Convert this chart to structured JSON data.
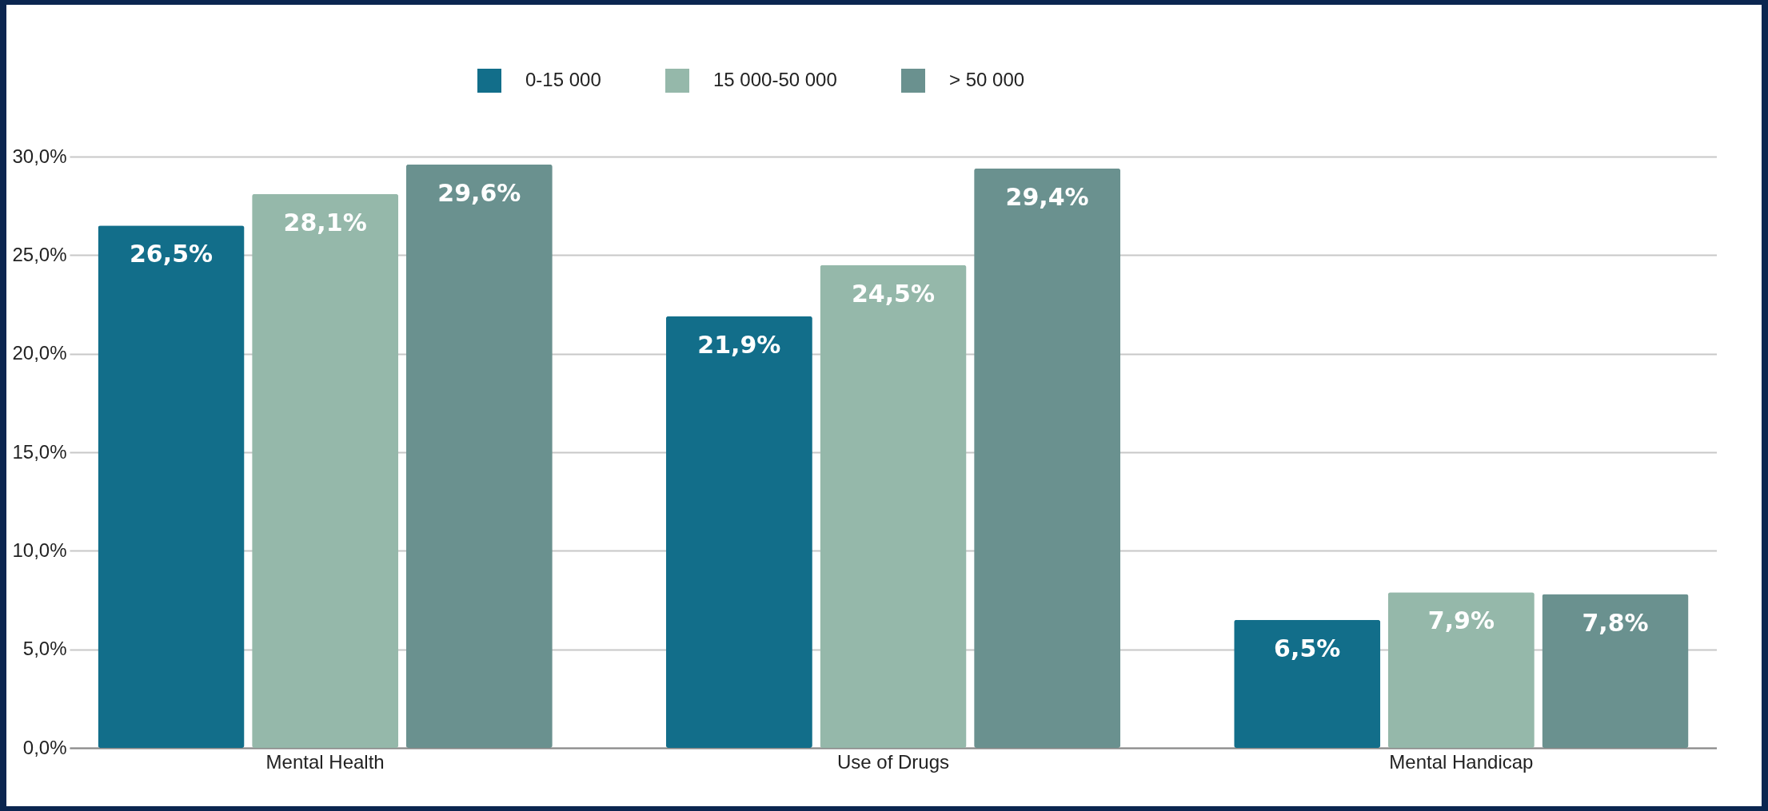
{
  "chart_data": {
    "type": "bar",
    "categories": [
      "Mental Health",
      "Use of Drugs",
      "Mental Handicap"
    ],
    "series": [
      {
        "name": "0-15 000",
        "color": "#126e8a",
        "values": [
          26.5,
          21.9,
          6.5
        ],
        "value_labels": [
          "26,5%",
          "21,9%",
          "6,5%"
        ]
      },
      {
        "name": "15 000-50 000",
        "color": "#95b8aa",
        "values": [
          28.1,
          24.5,
          7.9
        ],
        "value_labels": [
          "28,1%",
          "24,5%",
          "7,9%"
        ]
      },
      {
        "name": "> 50 000",
        "color": "#6a918f",
        "values": [
          29.6,
          29.4,
          7.8
        ],
        "value_labels": [
          "29,6%",
          "29,4%",
          "7,8%"
        ]
      }
    ],
    "ylim": [
      0,
      30
    ],
    "yticks": [
      {
        "value": 0,
        "label": "0,0%"
      },
      {
        "value": 5,
        "label": "5,0%"
      },
      {
        "value": 10,
        "label": "10,0%"
      },
      {
        "value": 15,
        "label": "15,0%"
      },
      {
        "value": 20,
        "label": "20,0%"
      },
      {
        "value": 25,
        "label": "25,0%"
      },
      {
        "value": 30,
        "label": "30,0%"
      }
    ],
    "grid": "y",
    "legend": "top"
  }
}
